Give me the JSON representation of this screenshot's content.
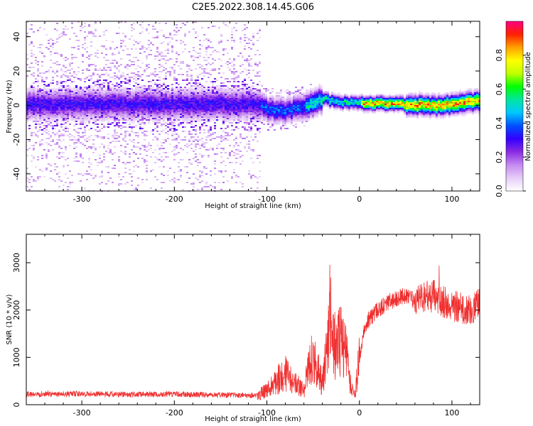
{
  "title": "C2E5.2022.308.14.45.G06",
  "chart_data": [
    {
      "type": "heatmap",
      "xlabel": "Height of straight line (km)",
      "ylabel": "Frequency (Hz)",
      "xlim": [
        -360,
        130
      ],
      "ylim": [
        -50,
        49
      ],
      "x_ticks": [
        -300,
        -200,
        -100,
        0,
        100
      ],
      "y_ticks": [
        -40,
        -20,
        0,
        20,
        40
      ],
      "colorbar": {
        "label": "Normalized spectral amplitude",
        "range": [
          0,
          1
        ],
        "ticks": [
          "0.0",
          "0.2",
          "0.4",
          "0.6",
          "0.8"
        ],
        "colors": [
          "#ffffff",
          "#e6cdf8",
          "#c58af0",
          "#8a2be2",
          "#3300ff",
          "#0050ff",
          "#00c8ff",
          "#00e6a0",
          "#00ff00",
          "#c0ff00",
          "#ffff00",
          "#ffa000",
          "#ff2000",
          "#ff0080"
        ]
      },
      "noise_region_end_x": -107,
      "signal_center_hz": [
        {
          "x": -360,
          "y": 1
        },
        {
          "x": -108,
          "y": 1
        },
        {
          "x": -100,
          "y": -2
        },
        {
          "x": -80,
          "y": -3
        },
        {
          "x": -60,
          "y": 0
        },
        {
          "x": -40,
          "y": 4
        },
        {
          "x": -20,
          "y": 2
        },
        {
          "x": 0,
          "y": 2
        },
        {
          "x": 40,
          "y": 1
        },
        {
          "x": 80,
          "y": 0
        },
        {
          "x": 100,
          "y": 1
        },
        {
          "x": 130,
          "y": 3
        }
      ],
      "legend_position": "right"
    },
    {
      "type": "line",
      "xlabel": "Height of straight line (km)",
      "ylabel": "SNR (10 * v/v)",
      "xlim": [
        -360,
        130
      ],
      "ylim": [
        0,
        3600
      ],
      "x_ticks": [
        -300,
        -200,
        -100,
        0,
        100
      ],
      "y_ticks": [
        0,
        1000,
        2000,
        3000
      ],
      "series": [
        {
          "color": "#f03030",
          "x": [
            -360,
            -300,
            -250,
            -200,
            -150,
            -110,
            -100,
            -90,
            -80,
            -70,
            -60,
            -55,
            -50,
            -40,
            -35,
            -30,
            -25,
            -20,
            -15,
            -10,
            -5,
            0,
            5,
            10,
            20,
            30,
            40,
            50,
            60,
            70,
            80,
            90,
            100,
            110,
            120,
            130
          ],
          "values": [
            220,
            230,
            220,
            220,
            210,
            200,
            300,
            500,
            650,
            450,
            300,
            800,
            1000,
            450,
            1200,
            1800,
            1100,
            1400,
            1300,
            500,
            200,
            1000,
            1600,
            1800,
            2000,
            2150,
            2250,
            2300,
            2200,
            2250,
            2300,
            2200,
            2100,
            2050,
            2000,
            2150
          ]
        }
      ]
    }
  ]
}
